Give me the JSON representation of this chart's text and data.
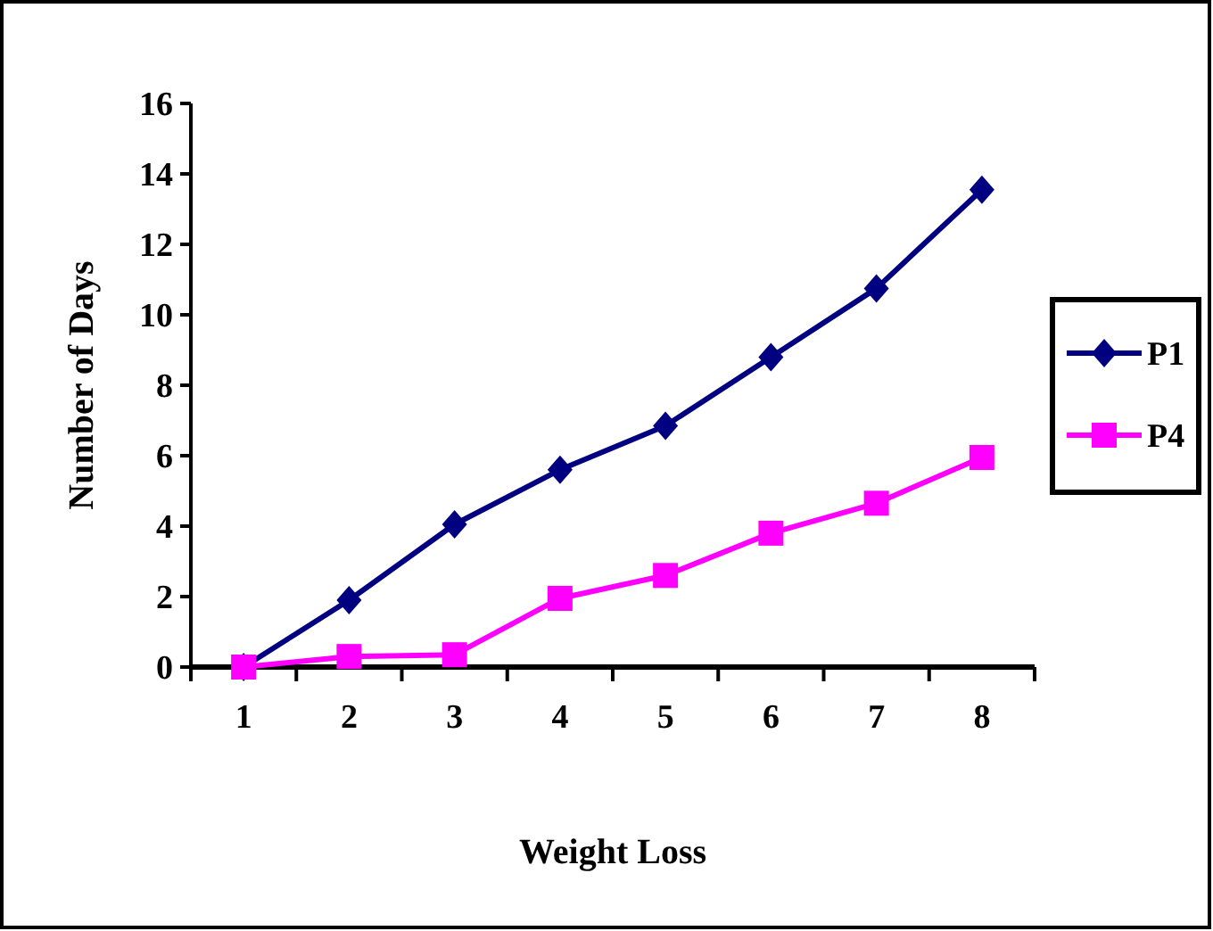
{
  "chart_data": {
    "type": "line",
    "xlabel": "Weight Loss",
    "ylabel": "Number of Days",
    "categories": [
      "1",
      "2",
      "3",
      "4",
      "5",
      "6",
      "7",
      "8"
    ],
    "series": [
      {
        "name": "P1",
        "color": "#000080",
        "marker": "diamond",
        "values": [
          0,
          1.9,
          4.05,
          5.6,
          6.85,
          8.8,
          10.75,
          13.55
        ]
      },
      {
        "name": "P4",
        "color": "#ff00ff",
        "marker": "square",
        "values": [
          0,
          0.3,
          0.35,
          1.95,
          2.6,
          3.8,
          4.65,
          5.95
        ]
      }
    ],
    "ylim": [
      0,
      16
    ],
    "yticks": [
      0,
      2,
      4,
      6,
      8,
      10,
      12,
      14,
      16
    ],
    "grid": false,
    "legend": "right"
  }
}
